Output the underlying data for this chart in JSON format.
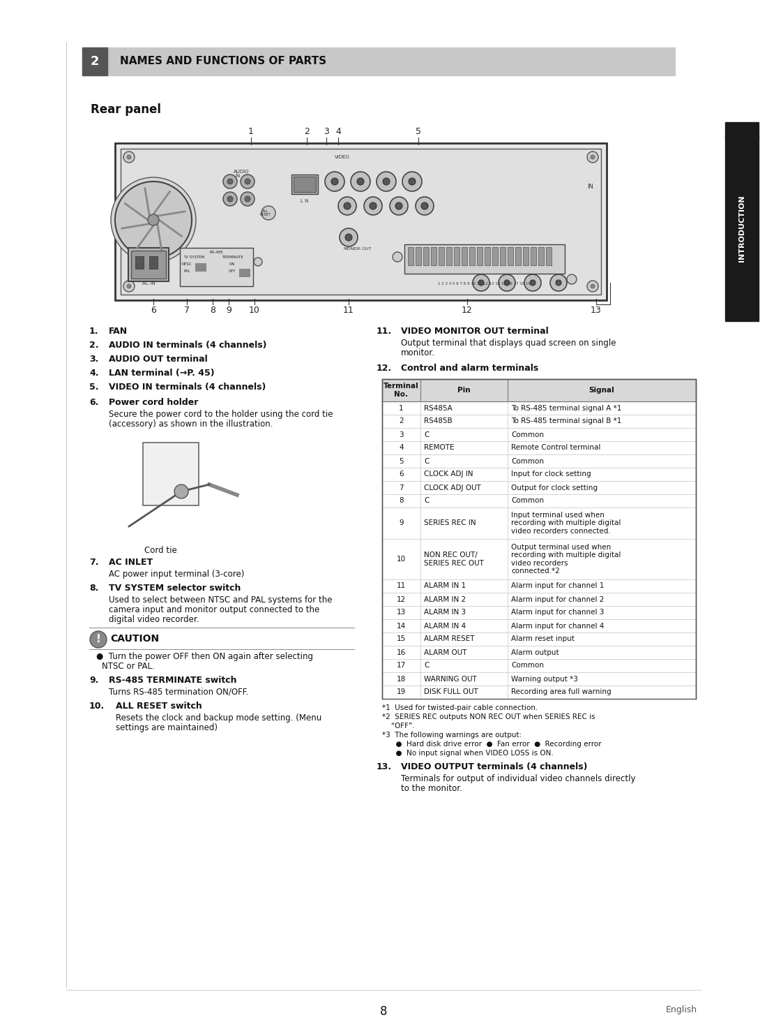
{
  "page_bg": "#ffffff",
  "section_header_bg": "#c8c8c8",
  "section_number_bg": "#555555",
  "section_number_color": "#ffffff",
  "section_title": "NAMES AND FUNCTIONS OF PARTS",
  "section_num": "2",
  "subsection_title": "Rear panel",
  "sidebar_bg": "#1a1a1a",
  "sidebar_text": "INTRODUCTION",
  "page_number": "8",
  "page_lang": "English",
  "left_items": [
    {
      "num": "1.",
      "bold": "FAN",
      "rest": "",
      "indent": 35
    },
    {
      "num": "2.",
      "bold": "AUDIO IN terminals (4 channels)",
      "rest": "",
      "indent": 28
    },
    {
      "num": "3.",
      "bold": "AUDIO OUT terminal",
      "rest": "",
      "indent": 28
    },
    {
      "num": "4.",
      "bold": "LAN terminal (→P. 45)",
      "rest": "",
      "indent": 28
    },
    {
      "num": "5.",
      "bold": "VIDEO IN terminals (4 channels)",
      "rest": "",
      "indent": 28
    },
    {
      "num": "6.",
      "bold": "Power cord holder",
      "rest": "Secure the power cord to the holder using the cord tie\n(accessory) as shown in the illustration.",
      "indent": 28
    },
    {
      "num": "7.",
      "bold": "AC INLET",
      "rest": "AC power input terminal (3-core)",
      "indent": 28
    },
    {
      "num": "8.",
      "bold": "TV SYSTEM selector switch",
      "rest": "Used to select between NTSC and PAL systems for the\ncamera input and monitor output connected to the\ndigital video recorder.",
      "indent": 28
    },
    {
      "num": "9.",
      "bold": "RS-485 TERMINATE switch",
      "rest": "Turns RS-485 termination ON/OFF.",
      "indent": 28
    },
    {
      "num": "10.",
      "bold": "ALL RESET switch",
      "rest": "Resets the clock and backup mode setting. (Menu\nsettings are maintained)",
      "indent": 35
    }
  ],
  "caution_title": "CAUTION",
  "caution_text": "●  Turn the power OFF then ON again after selecting\n    NTSC or PAL.",
  "right_items_pre_table": [
    {
      "num": "11.",
      "bold": "VIDEO MONITOR OUT terminal",
      "rest": "Output terminal that displays quad screen on single\nmonitor.",
      "indent": 35
    },
    {
      "num": "12.",
      "bold": "Control and alarm terminals",
      "rest": "",
      "indent": 35
    }
  ],
  "table_headers": [
    "Terminal\nNo.",
    "Pin",
    "Signal"
  ],
  "table_rows": [
    [
      "1",
      "RS485A",
      "To RS-485 terminal signal A *1"
    ],
    [
      "2",
      "RS485B",
      "To RS-485 terminal signal B *1"
    ],
    [
      "3",
      "C",
      "Common"
    ],
    [
      "4",
      "REMOTE",
      "Remote Control terminal"
    ],
    [
      "5",
      "C",
      "Common"
    ],
    [
      "6",
      "CLOCK ADJ IN",
      "Input for clock setting"
    ],
    [
      "7",
      "CLOCK ADJ OUT",
      "Output for clock setting"
    ],
    [
      "8",
      "C",
      "Common"
    ],
    [
      "9",
      "SERIES REC IN",
      "Input terminal used when\nrecording with multiple digital\nvideo recorders connected."
    ],
    [
      "10",
      "NON REC OUT/\nSERIES REC OUT",
      "Output terminal used when\nrecording with multiple digital\nvideo recorders\nconnected.*2"
    ],
    [
      "11",
      "ALARM IN 1",
      "Alarm input for channel 1"
    ],
    [
      "12",
      "ALARM IN 2",
      "Alarm input for channel 2"
    ],
    [
      "13",
      "ALARM IN 3",
      "Alarm input for channel 3"
    ],
    [
      "14",
      "ALARM IN 4",
      "Alarm input for channel 4"
    ],
    [
      "15",
      "ALARM RESET",
      "Alarm reset input"
    ],
    [
      "16",
      "ALARM OUT",
      "Alarm output"
    ],
    [
      "17",
      "C",
      "Common"
    ],
    [
      "18",
      "WARNING OUT",
      "Warning output *3"
    ],
    [
      "19",
      "DISK FULL OUT",
      "Recording area full warning"
    ]
  ],
  "footnotes": [
    "*1  Used for twisted-pair cable connection.",
    "*2  SERIES REC outputs NON REC OUT when SERIES REC is\n    “OFF”.",
    "*3  The following warnings are output:",
    "      ●  Hard disk drive error  ●  Fan error  ●  Recording error",
    "      ●  No input signal when VIDEO LOSS is ON."
  ],
  "item13": {
    "num": "13.",
    "bold": "VIDEO OUTPUT terminals (4 channels)",
    "rest": "Terminals for output of individual video channels directly\nto the monitor.",
    "indent": 35
  }
}
